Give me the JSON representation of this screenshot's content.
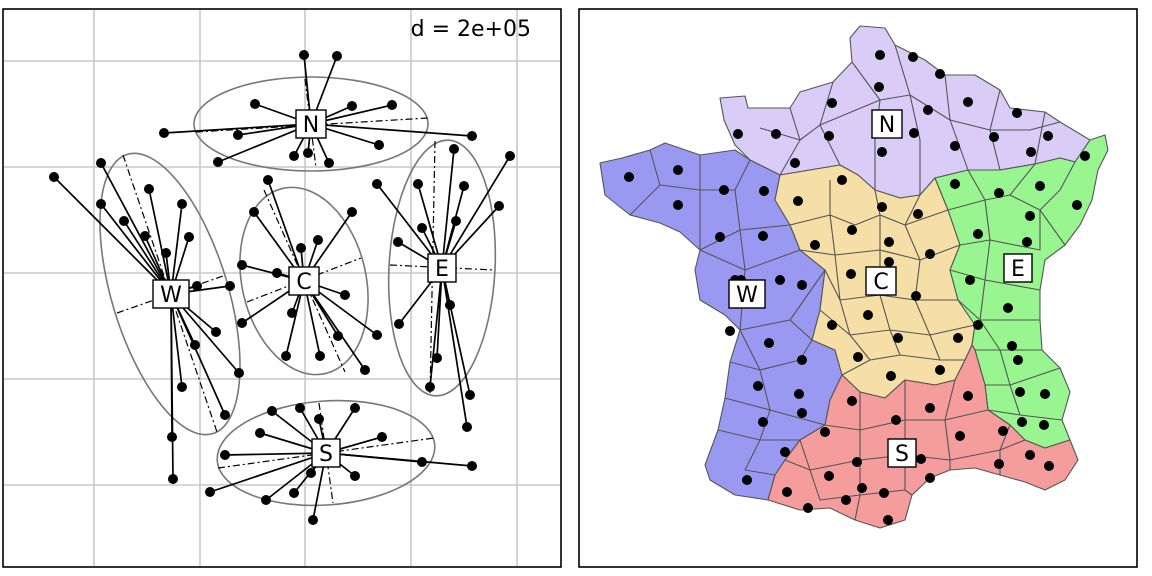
{
  "left_panel": {
    "distance_label": "d = 2e+05",
    "clusters": [
      {
        "label": "N"
      },
      {
        "label": "W"
      },
      {
        "label": "C"
      },
      {
        "label": "E"
      },
      {
        "label": "S"
      }
    ]
  },
  "right_panel": {
    "regions": [
      {
        "label": "N",
        "color": "#d9ccf7"
      },
      {
        "label": "W",
        "color": "#9999f2"
      },
      {
        "label": "C",
        "color": "#f5dfa6"
      },
      {
        "label": "E",
        "color": "#99f58f"
      },
      {
        "label": "S",
        "color": "#f59c9c"
      }
    ]
  },
  "colors": {
    "grid": "#c8c8c8",
    "ellipse": "#777777",
    "border": "#555555"
  }
}
